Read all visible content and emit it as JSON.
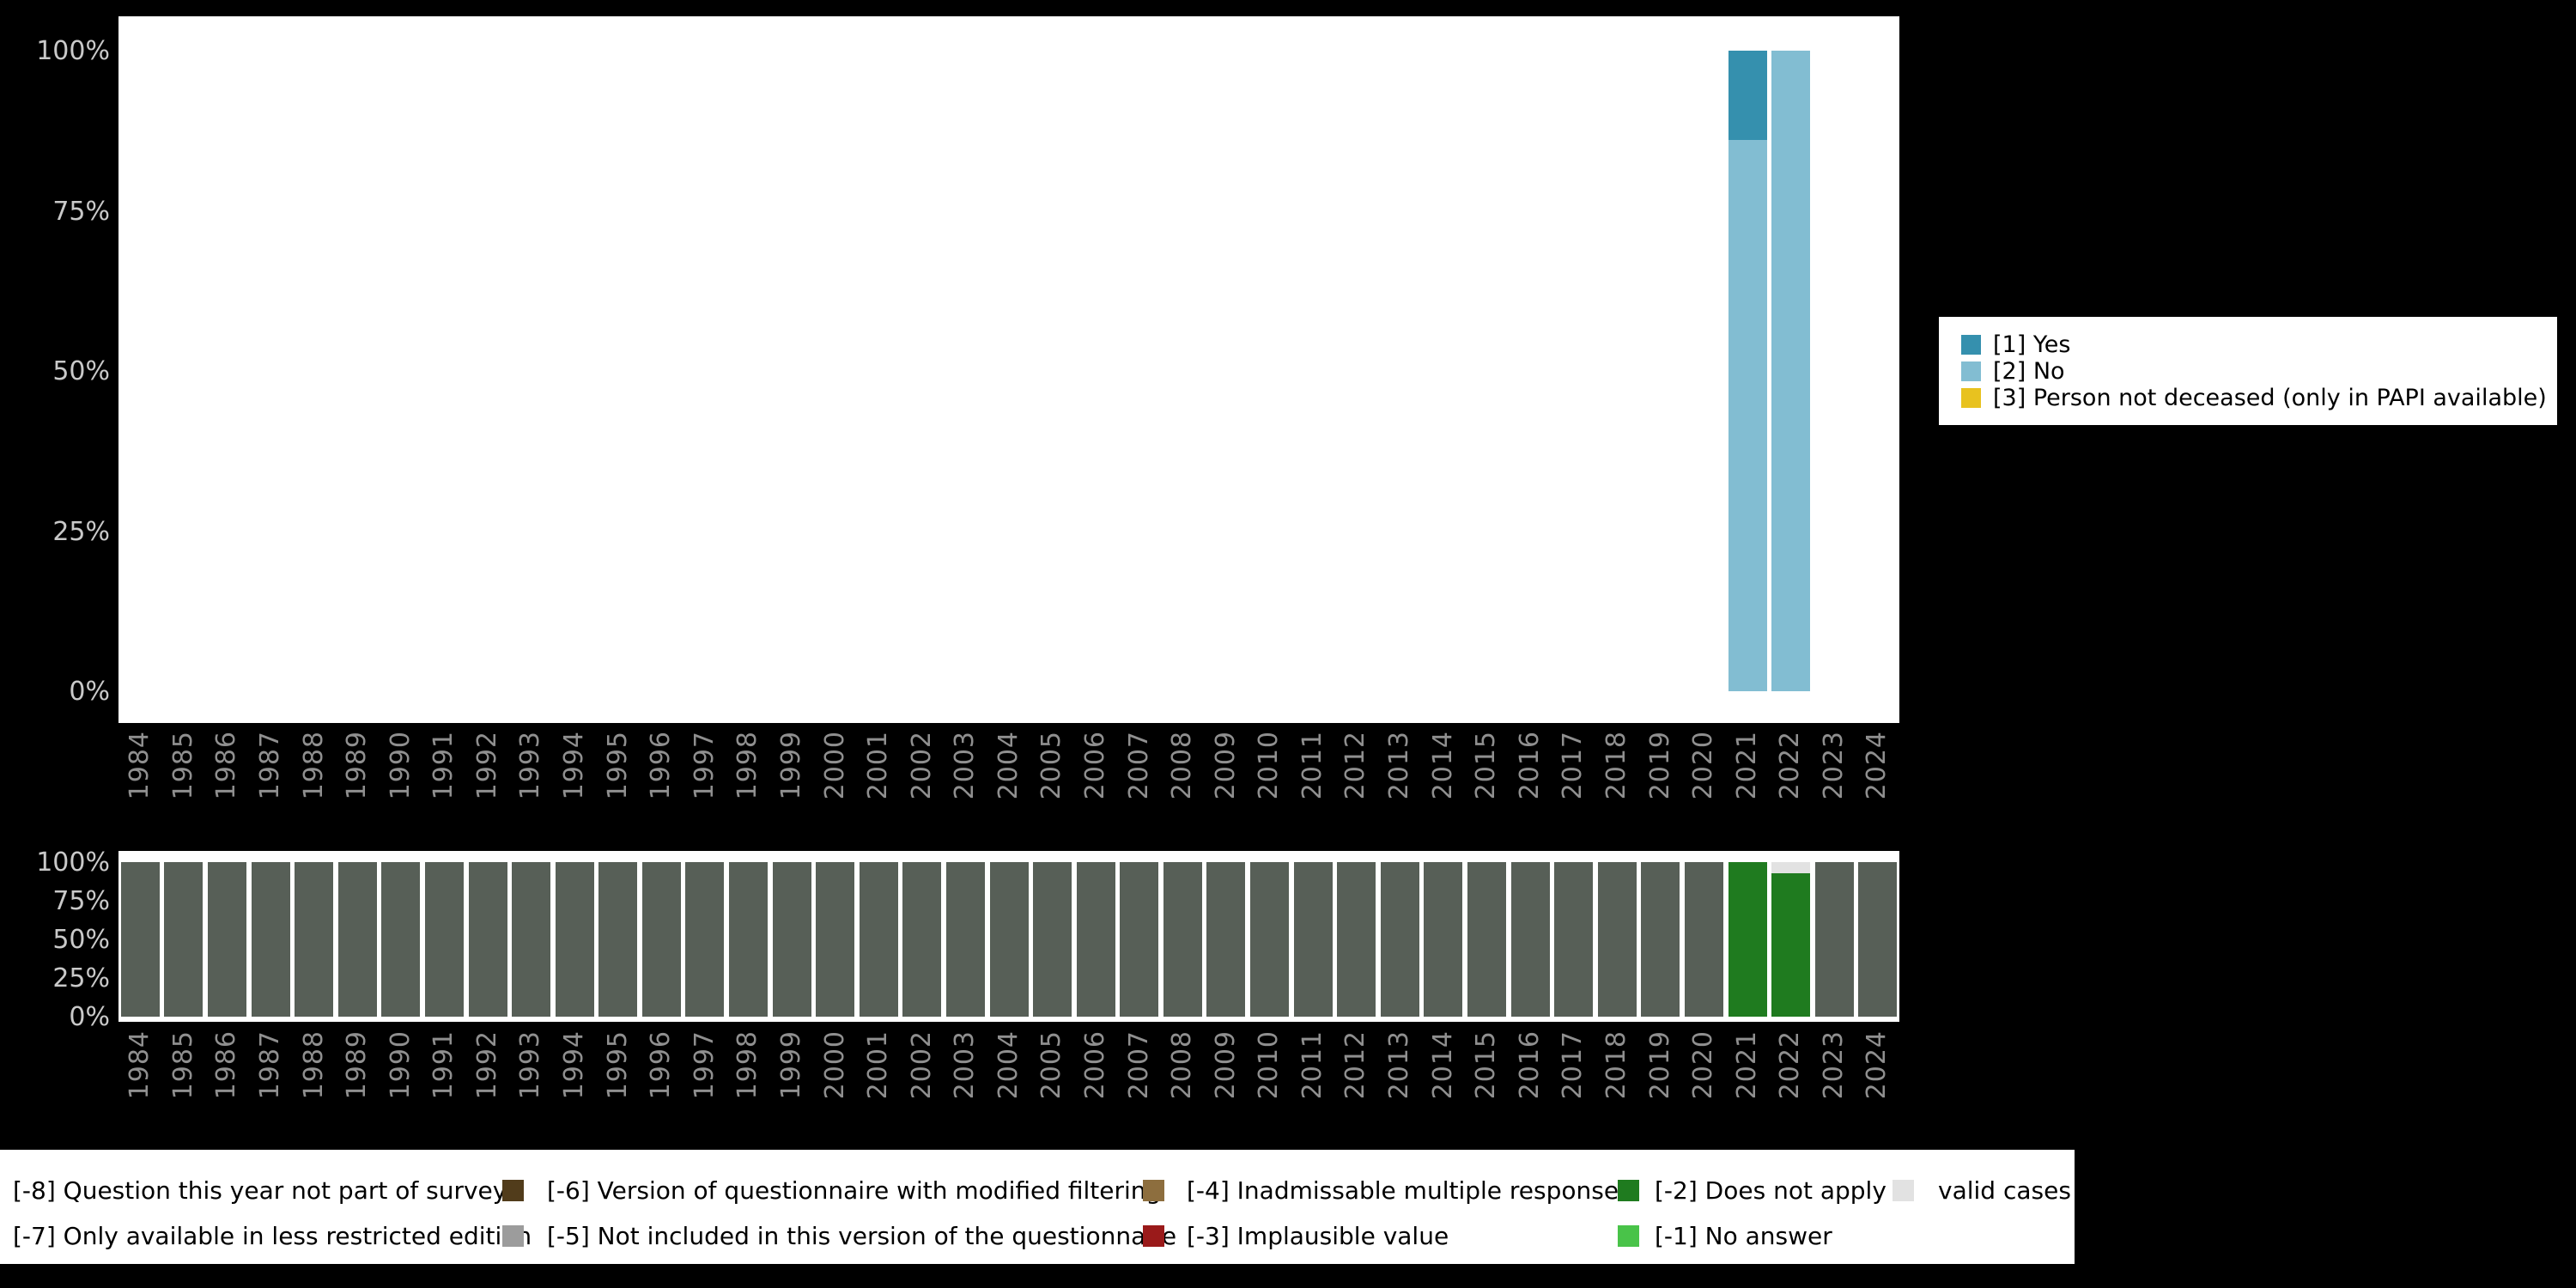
{
  "page": {
    "background": "#000000",
    "plot_background": "#ffffff",
    "y_tick_color": "#c9c9c9",
    "x_tick_color": "#8f8f8f"
  },
  "chart_data": [
    {
      "id": "value-distribution-by-year",
      "type": "bar",
      "stacked": true,
      "unit": "percent",
      "ylim": [
        0,
        100
      ],
      "grid": false,
      "legend_position": "right",
      "yticks": [
        "100%",
        "75%",
        "50%",
        "25%",
        "0%"
      ],
      "categories": [
        "1984",
        "1985",
        "1986",
        "1987",
        "1988",
        "1989",
        "1990",
        "1991",
        "1992",
        "1993",
        "1994",
        "1995",
        "1996",
        "1997",
        "1998",
        "1999",
        "2000",
        "2001",
        "2002",
        "2003",
        "2004",
        "2005",
        "2006",
        "2007",
        "2008",
        "2009",
        "2010",
        "2011",
        "2012",
        "2013",
        "2014",
        "2015",
        "2016",
        "2017",
        "2018",
        "2019",
        "2020",
        "2021",
        "2022",
        "2023",
        "2024"
      ],
      "series": [
        {
          "name": "[1] Yes",
          "color": "#3590ae",
          "values": {
            "2021": 14
          }
        },
        {
          "name": "[2] No",
          "color": "#82bdd2",
          "values": {
            "2021": 86,
            "2022": 100
          }
        },
        {
          "name": "[3] Person not deceased (only in PAPI available)",
          "color": "#e8c21f",
          "values": {}
        }
      ]
    },
    {
      "id": "missing-values-by-year",
      "type": "bar",
      "stacked": true,
      "unit": "percent",
      "ylim": [
        0,
        100
      ],
      "grid": false,
      "yticks": [
        "100%",
        "75%",
        "50%",
        "25%",
        "0%"
      ],
      "categories": [
        "1984",
        "1985",
        "1986",
        "1987",
        "1988",
        "1989",
        "1990",
        "1991",
        "1992",
        "1993",
        "1994",
        "1995",
        "1996",
        "1997",
        "1998",
        "1999",
        "2000",
        "2001",
        "2002",
        "2003",
        "2004",
        "2005",
        "2006",
        "2007",
        "2008",
        "2009",
        "2010",
        "2011",
        "2012",
        "2013",
        "2014",
        "2015",
        "2016",
        "2017",
        "2018",
        "2019",
        "2020",
        "2021",
        "2022",
        "2023",
        "2024"
      ],
      "series": [
        {
          "name": "valid cases",
          "color": "#e2e2e2",
          "values": {
            "2022": 7
          }
        },
        {
          "name": "[-2] Does not apply",
          "color": "#1f7b1f",
          "values": {
            "2021": 100,
            "2022": 93
          }
        },
        {
          "name": "[-8] Question this year not part of survey",
          "color": "#575f57",
          "values": {
            "2021": 0,
            "2022": 0
          },
          "default_value": 100
        }
      ]
    }
  ],
  "missing_legend": {
    "rows": [
      [
        {
          "label": "[-8] Question this year not part of survey",
          "color": null
        },
        {
          "label": "[-6] Version of questionnaire with modified filtering",
          "color": "#513c1b"
        },
        {
          "label": "[-4] Inadmissable multiple response",
          "color": "#8d6e3e"
        },
        {
          "label": "[-2] Does not apply",
          "color": "#1f7b1f"
        },
        {
          "label": "valid cases",
          "color": "#e2e2e2"
        }
      ],
      [
        {
          "label": "[-7] Only available in less restricted edition",
          "color": null
        },
        {
          "label": "[-5] Not included in this version of the questionnaire",
          "color": "#9c9c9c"
        },
        {
          "label": "[-3] Implausible value",
          "color": "#9a1a1a"
        },
        {
          "label": "[-1] No answer",
          "color": "#49c349"
        }
      ]
    ]
  }
}
